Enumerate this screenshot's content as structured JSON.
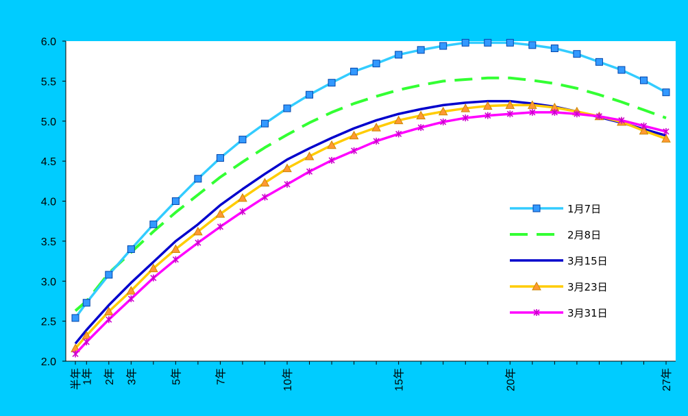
{
  "colors": {
    "frame_bg": "#00CCFF",
    "plot_bg": "#FFFFFF",
    "axis": "#000000"
  },
  "chart_data": {
    "type": "line",
    "title": "",
    "xlabel": "",
    "ylabel": "",
    "ylim": [
      2.0,
      6.0
    ],
    "y_ticks": [
      "2.0",
      "2.5",
      "3.0",
      "3.5",
      "4.0",
      "4.5",
      "5.0",
      "5.5",
      "6.0"
    ],
    "x_tick_labels": [
      {
        "x": 0.5,
        "label": "半年"
      },
      {
        "x": 1,
        "label": "1年"
      },
      {
        "x": 2,
        "label": "2年"
      },
      {
        "x": 3,
        "label": "3年"
      },
      {
        "x": 5,
        "label": "5年"
      },
      {
        "x": 7,
        "label": "7年"
      },
      {
        "x": 10,
        "label": "10年"
      },
      {
        "x": 15,
        "label": "15年"
      },
      {
        "x": 20,
        "label": "20年"
      },
      {
        "x": 27,
        "label": "27年"
      }
    ],
    "x": [
      0.5,
      1,
      2,
      3,
      4,
      5,
      6,
      7,
      8,
      9,
      10,
      11,
      12,
      13,
      14,
      15,
      16,
      17,
      18,
      19,
      20,
      21,
      22,
      23,
      24,
      25,
      26,
      27
    ],
    "legend_position": "right",
    "series": [
      {
        "name": "1月7日",
        "color": "#33CCFF",
        "marker": "square",
        "marker_fill": "#3399FF",
        "dash": "solid",
        "values": [
          2.54,
          2.73,
          3.08,
          3.4,
          3.71,
          4.0,
          4.28,
          4.54,
          4.77,
          4.97,
          5.16,
          5.33,
          5.48,
          5.62,
          5.72,
          5.83,
          5.89,
          5.94,
          5.98,
          5.98,
          5.98,
          5.95,
          5.91,
          5.84,
          5.74,
          5.64,
          5.51,
          5.36
        ]
      },
      {
        "name": "2月8日",
        "color": "#33FF33",
        "marker": "none",
        "dash": "long-dash",
        "values": [
          2.63,
          2.75,
          3.1,
          3.36,
          3.62,
          3.86,
          4.08,
          4.3,
          4.49,
          4.67,
          4.83,
          4.98,
          5.11,
          5.22,
          5.31,
          5.39,
          5.45,
          5.5,
          5.52,
          5.54,
          5.54,
          5.51,
          5.47,
          5.41,
          5.33,
          5.24,
          5.14,
          5.04
        ]
      },
      {
        "name": "3月15日",
        "color": "#0000CC",
        "marker": "none",
        "dash": "solid",
        "values": [
          2.22,
          2.39,
          2.7,
          2.98,
          3.24,
          3.5,
          3.71,
          3.95,
          4.15,
          4.34,
          4.52,
          4.66,
          4.79,
          4.91,
          5.01,
          5.09,
          5.15,
          5.2,
          5.23,
          5.25,
          5.25,
          5.22,
          5.18,
          5.12,
          5.05,
          4.98,
          4.9,
          4.82
        ]
      },
      {
        "name": "3月23日",
        "color": "#FFCC00",
        "marker": "triangle",
        "marker_fill": "#FF9933",
        "dash": "solid",
        "values": [
          2.16,
          2.32,
          2.62,
          2.88,
          3.16,
          3.4,
          3.62,
          3.84,
          4.04,
          4.23,
          4.41,
          4.56,
          4.7,
          4.82,
          4.92,
          5.01,
          5.07,
          5.12,
          5.16,
          5.19,
          5.2,
          5.2,
          5.17,
          5.12,
          5.06,
          4.99,
          4.88,
          4.78
        ]
      },
      {
        "name": "3月31日",
        "color": "#FF00FF",
        "marker": "star",
        "marker_fill": "#FF66FF",
        "dash": "solid",
        "values": [
          2.09,
          2.24,
          2.52,
          2.78,
          3.04,
          3.27,
          3.48,
          3.68,
          3.87,
          4.05,
          4.21,
          4.37,
          4.51,
          4.63,
          4.75,
          4.84,
          4.92,
          4.99,
          5.04,
          5.07,
          5.09,
          5.11,
          5.11,
          5.09,
          5.06,
          5.01,
          4.94,
          4.87
        ]
      }
    ]
  }
}
